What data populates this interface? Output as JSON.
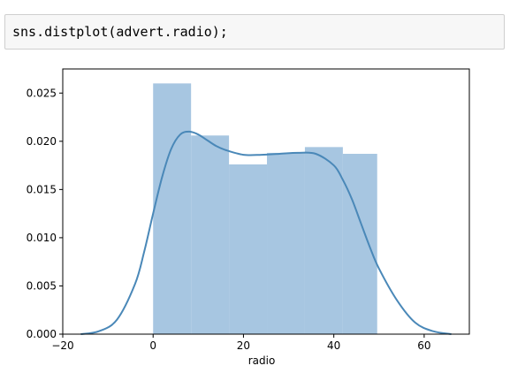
{
  "cell": {
    "code": "sns.distplot(advert.radio);"
  },
  "colors": {
    "bar_fill": "#a7c6e1",
    "kde_line": "#4a88b8",
    "axis": "#000000",
    "cell_background": "#f7f7f7",
    "cell_border": "#cfcfcf"
  },
  "chart_data": {
    "type": "bar",
    "title": "",
    "xlabel": "radio",
    "ylabel": "",
    "xlim": [
      -20,
      70
    ],
    "ylim": [
      0,
      0.0275
    ],
    "grid": false,
    "legend": "none",
    "bins": [
      {
        "x0": 0.0,
        "x1": 8.4,
        "density": 0.026
      },
      {
        "x0": 8.4,
        "x1": 16.8,
        "density": 0.0206
      },
      {
        "x0": 16.8,
        "x1": 25.2,
        "density": 0.0176
      },
      {
        "x0": 25.2,
        "x1": 33.6,
        "density": 0.0188
      },
      {
        "x0": 33.6,
        "x1": 42.0,
        "density": 0.0194
      },
      {
        "x0": 42.0,
        "x1": 49.6,
        "density": 0.0187
      }
    ],
    "kde": {
      "x": [
        -16,
        -12,
        -8,
        -4,
        -2,
        0,
        2,
        4,
        6,
        8,
        10,
        12,
        14,
        16,
        20,
        24,
        28,
        32,
        36,
        40,
        42,
        44,
        46,
        48,
        50,
        54,
        58,
        62,
        66
      ],
      "y": [
        0.0,
        0.0003,
        0.0015,
        0.0052,
        0.0085,
        0.0125,
        0.0163,
        0.0192,
        0.0207,
        0.021,
        0.0207,
        0.0201,
        0.0195,
        0.0191,
        0.0186,
        0.0186,
        0.0187,
        0.0188,
        0.0187,
        0.0175,
        0.016,
        0.014,
        0.0115,
        0.009,
        0.0068,
        0.0035,
        0.0012,
        0.0003,
        0.0
      ]
    },
    "xticks": [
      -20,
      0,
      20,
      40,
      60
    ],
    "xtick_labels": [
      "−20",
      "0",
      "20",
      "40",
      "60"
    ],
    "yticks": [
      0.0,
      0.005,
      0.01,
      0.015,
      0.02,
      0.025
    ],
    "ytick_labels": [
      "0.000",
      "0.005",
      "0.010",
      "0.015",
      "0.020",
      "0.025"
    ]
  }
}
